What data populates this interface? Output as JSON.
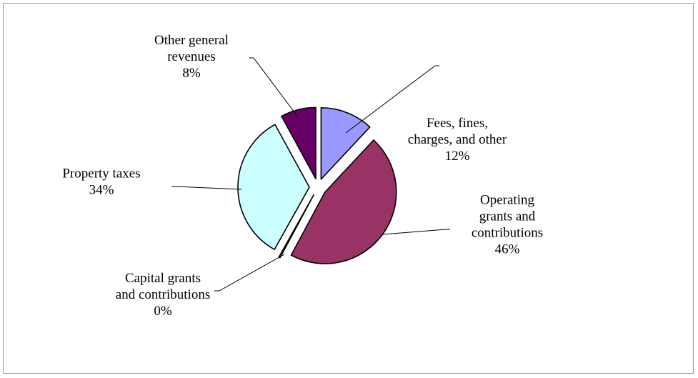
{
  "chart_data": {
    "type": "pie",
    "title": "",
    "exploded": true,
    "slices": [
      {
        "name_lines": [
          "Fees, fines,",
          "charges, and other"
        ],
        "pct_label": "12%",
        "value": 12,
        "color": "#9999FF"
      },
      {
        "name_lines": [
          "Operating",
          "grants and",
          "contributions"
        ],
        "pct_label": "46%",
        "value": 46,
        "color": "#993366"
      },
      {
        "name_lines": [
          "Capital grants",
          "and contributions"
        ],
        "pct_label": "0%",
        "value": 0.3,
        "color": "#FFFFCC"
      },
      {
        "name_lines": [
          "Property taxes"
        ],
        "pct_label": "34%",
        "value": 34,
        "color": "#CCFFFF"
      },
      {
        "name_lines": [
          "Other general",
          "revenues"
        ],
        "pct_label": "8%",
        "value": 8,
        "color": "#660066"
      }
    ]
  }
}
